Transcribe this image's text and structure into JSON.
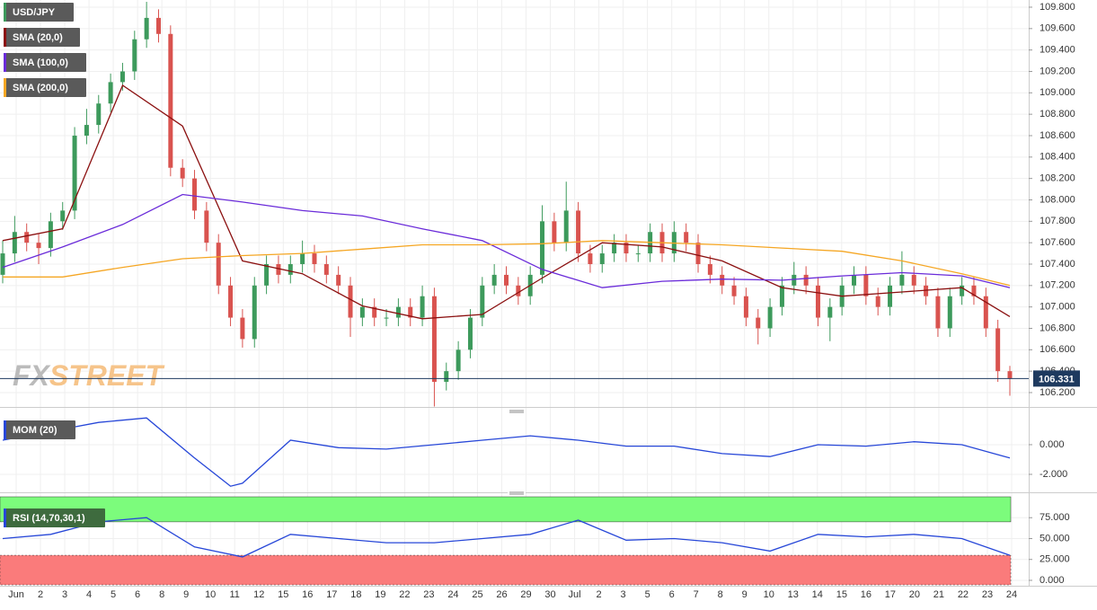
{
  "chart_data": [
    {
      "type": "candlestick",
      "title": "USD/JPY",
      "up_color": "#3d9a5c",
      "down_color": "#d9534f",
      "categories": [
        "Jun",
        "2",
        "3",
        "4",
        "5",
        "6",
        "8",
        "9",
        "10",
        "11",
        "12",
        "15",
        "16",
        "17",
        "18",
        "19",
        "22",
        "23",
        "24",
        "25",
        "26",
        "29",
        "30",
        "Jul",
        "2",
        "3",
        "5",
        "6",
        "7",
        "8",
        "9",
        "10",
        "13",
        "14",
        "15",
        "16",
        "17",
        "20",
        "21",
        "22",
        "23",
        "24"
      ],
      "ylim": [
        106.074,
        109.867
      ],
      "yticks": [
        {
          "value": 106.2,
          "label": "106.200"
        },
        {
          "value": 106.4,
          "label": "106.400"
        },
        {
          "value": 106.6,
          "label": "106.600"
        },
        {
          "value": 106.8,
          "label": "106.800"
        },
        {
          "value": 107.0,
          "label": "107.000"
        },
        {
          "value": 107.2,
          "label": "107.200"
        },
        {
          "value": 107.4,
          "label": "107.400"
        },
        {
          "value": 107.6,
          "label": "107.600"
        },
        {
          "value": 107.8,
          "label": "107.800"
        },
        {
          "value": 108.0,
          "label": "108.000"
        },
        {
          "value": 108.2,
          "label": "108.200"
        },
        {
          "value": 108.4,
          "label": "108.400"
        },
        {
          "value": 108.6,
          "label": "108.600"
        },
        {
          "value": 108.8,
          "label": "108.800"
        },
        {
          "value": 109.0,
          "label": "109.000"
        },
        {
          "value": 109.2,
          "label": "109.200"
        },
        {
          "value": 109.4,
          "label": "109.400"
        },
        {
          "value": 109.6,
          "label": "109.600"
        },
        {
          "value": 109.8,
          "label": "109.800"
        }
      ],
      "last_price": 106.331,
      "candles": [
        [
          107.3,
          107.62,
          107.22,
          107.5
        ],
        [
          107.5,
          107.85,
          107.42,
          107.7
        ],
        [
          107.7,
          107.78,
          107.52,
          107.6
        ],
        [
          107.6,
          107.68,
          107.4,
          107.55
        ],
        [
          107.55,
          107.88,
          107.47,
          107.8
        ],
        [
          107.8,
          107.98,
          107.72,
          107.9
        ],
        [
          107.9,
          108.68,
          107.82,
          108.6
        ],
        [
          108.6,
          108.85,
          108.52,
          108.7
        ],
        [
          108.7,
          108.98,
          108.62,
          108.9
        ],
        [
          108.9,
          109.18,
          108.82,
          109.1
        ],
        [
          109.1,
          109.28,
          109.02,
          109.2
        ],
        [
          109.2,
          109.58,
          109.12,
          109.5
        ],
        [
          109.5,
          109.85,
          109.42,
          109.7
        ],
        [
          109.7,
          109.78,
          109.47,
          109.55
        ],
        [
          109.55,
          109.63,
          108.22,
          108.3
        ],
        [
          108.3,
          108.38,
          108.12,
          108.2
        ],
        [
          108.2,
          108.28,
          107.82,
          107.9
        ],
        [
          107.9,
          107.98,
          107.52,
          107.6
        ],
        [
          107.6,
          107.68,
          107.12,
          107.2
        ],
        [
          107.2,
          107.28,
          106.82,
          106.9
        ],
        [
          106.9,
          106.98,
          106.62,
          106.7
        ],
        [
          106.7,
          107.28,
          106.62,
          107.2
        ],
        [
          107.2,
          107.48,
          107.12,
          107.4
        ],
        [
          107.4,
          107.48,
          107.22,
          107.3
        ],
        [
          107.3,
          107.48,
          107.22,
          107.4
        ],
        [
          107.4,
          107.62,
          107.32,
          107.5
        ],
        [
          107.5,
          107.58,
          107.32,
          107.4
        ],
        [
          107.4,
          107.48,
          107.22,
          107.3
        ],
        [
          107.3,
          107.38,
          107.12,
          107.2
        ],
        [
          107.2,
          107.28,
          106.72,
          106.9
        ],
        [
          106.9,
          107.08,
          106.82,
          107.0
        ],
        [
          107.0,
          107.08,
          106.82,
          106.9
        ],
        [
          106.9,
          106.98,
          106.82,
          106.9
        ],
        [
          106.9,
          107.08,
          106.82,
          107.0
        ],
        [
          107.0,
          107.08,
          106.82,
          106.9
        ],
        [
          106.9,
          107.2,
          106.82,
          107.1
        ],
        [
          107.1,
          107.18,
          106.07,
          106.3
        ],
        [
          106.3,
          106.48,
          106.22,
          106.4
        ],
        [
          106.4,
          106.68,
          106.32,
          106.6
        ],
        [
          106.6,
          106.98,
          106.52,
          106.9
        ],
        [
          106.9,
          107.28,
          106.82,
          107.2
        ],
        [
          107.2,
          107.4,
          107.12,
          107.3
        ],
        [
          107.3,
          107.38,
          107.12,
          107.2
        ],
        [
          107.2,
          107.28,
          107.02,
          107.1
        ],
        [
          107.1,
          107.38,
          107.02,
          107.3
        ],
        [
          107.3,
          107.95,
          107.22,
          107.8
        ],
        [
          107.8,
          107.88,
          107.52,
          107.6
        ],
        [
          107.6,
          108.17,
          107.52,
          107.9
        ],
        [
          107.9,
          107.98,
          107.42,
          107.5
        ],
        [
          107.5,
          107.58,
          107.32,
          107.4
        ],
        [
          107.4,
          107.58,
          107.32,
          107.5
        ],
        [
          107.5,
          107.68,
          107.42,
          107.6
        ],
        [
          107.6,
          107.68,
          107.42,
          107.5
        ],
        [
          107.5,
          107.58,
          107.42,
          107.5
        ],
        [
          107.5,
          107.78,
          107.42,
          107.7
        ],
        [
          107.7,
          107.78,
          107.42,
          107.5
        ],
        [
          107.5,
          107.8,
          107.42,
          107.7
        ],
        [
          107.7,
          107.78,
          107.52,
          107.6
        ],
        [
          107.6,
          107.68,
          107.32,
          107.4
        ],
        [
          107.4,
          107.48,
          107.22,
          107.3
        ],
        [
          107.3,
          107.38,
          107.12,
          107.2
        ],
        [
          107.2,
          107.28,
          107.02,
          107.1
        ],
        [
          107.1,
          107.18,
          106.82,
          106.9
        ],
        [
          106.9,
          106.98,
          106.65,
          106.8
        ],
        [
          106.8,
          107.08,
          106.72,
          107.0
        ],
        [
          107.0,
          107.28,
          106.92,
          107.2
        ],
        [
          107.2,
          107.42,
          107.12,
          107.3
        ],
        [
          107.3,
          107.38,
          107.12,
          107.2
        ],
        [
          107.2,
          107.28,
          106.82,
          106.9
        ],
        [
          106.9,
          107.08,
          106.68,
          107.0
        ],
        [
          107.0,
          107.28,
          106.92,
          107.2
        ],
        [
          107.2,
          107.38,
          107.12,
          107.3
        ],
        [
          107.3,
          107.38,
          107.02,
          107.1
        ],
        [
          107.1,
          107.18,
          106.92,
          107.0
        ],
        [
          107.0,
          107.28,
          106.92,
          107.2
        ],
        [
          107.2,
          107.52,
          107.12,
          107.3
        ],
        [
          107.3,
          107.38,
          107.12,
          107.2
        ],
        [
          107.2,
          107.28,
          107.02,
          107.1
        ],
        [
          107.1,
          107.18,
          106.72,
          106.8
        ],
        [
          106.8,
          107.18,
          106.72,
          107.1
        ],
        [
          107.1,
          107.28,
          107.02,
          107.2
        ],
        [
          107.2,
          107.28,
          107.02,
          107.1
        ],
        [
          107.1,
          107.18,
          106.72,
          106.8
        ],
        [
          106.8,
          106.88,
          106.3,
          106.4
        ],
        [
          106.4,
          106.45,
          106.17,
          106.33
        ]
      ],
      "series": [
        {
          "name": "SMA (20,0)",
          "color": "#8b1010",
          "x": [
            0,
            5,
            10,
            15,
            20,
            25,
            30,
            35,
            40,
            45,
            50,
            55,
            60,
            65,
            70,
            75,
            80,
            84
          ],
          "values": [
            107.62,
            107.73,
            109.07,
            108.69,
            107.43,
            107.31,
            107.01,
            106.89,
            106.93,
            107.27,
            107.6,
            107.56,
            107.43,
            107.18,
            107.1,
            107.14,
            107.18,
            106.91
          ]
        },
        {
          "name": "SMA (100,0)",
          "color": "#6a2bd9",
          "x": [
            0,
            5,
            10,
            15,
            20,
            25,
            30,
            35,
            40,
            45,
            50,
            55,
            60,
            65,
            70,
            75,
            80,
            84
          ],
          "values": [
            107.37,
            107.56,
            107.77,
            108.05,
            107.98,
            107.9,
            107.85,
            107.73,
            107.62,
            107.35,
            107.18,
            107.24,
            107.26,
            107.25,
            107.29,
            107.32,
            107.29,
            107.18
          ]
        },
        {
          "name": "SMA (200,0)",
          "color": "#f5a623",
          "x": [
            0,
            5,
            10,
            15,
            20,
            25,
            30,
            35,
            40,
            45,
            50,
            55,
            60,
            65,
            70,
            75,
            80,
            84
          ],
          "values": [
            107.28,
            107.28,
            107.37,
            107.45,
            107.48,
            107.5,
            107.54,
            107.58,
            107.58,
            107.59,
            107.62,
            107.6,
            107.58,
            107.55,
            107.52,
            107.43,
            107.31,
            107.2
          ]
        }
      ]
    },
    {
      "type": "line",
      "title": "MOM (20)",
      "ylim": [
        -3.03,
        2.42
      ],
      "yticks": [
        {
          "value": -2,
          "label": "-2.000"
        },
        {
          "value": 0,
          "label": "0.000"
        }
      ],
      "series": [
        {
          "color": "#2747d8",
          "x": [
            0,
            4,
            8,
            12,
            16,
            19,
            20,
            24,
            28,
            32,
            36,
            40,
            44,
            48,
            52,
            56,
            60,
            64,
            68,
            72,
            76,
            80,
            84
          ],
          "values": [
            0.3,
            0.9,
            1.5,
            1.8,
            -0.9,
            -2.8,
            -2.6,
            0.3,
            -0.2,
            -0.3,
            0.0,
            0.3,
            0.6,
            0.3,
            -0.1,
            -0.1,
            -0.6,
            -0.8,
            0.0,
            -0.1,
            0.2,
            0.0,
            -0.9
          ]
        }
      ]
    },
    {
      "type": "line",
      "title": "RSI (14,70,30,1)",
      "ylim": [
        -5.4,
        100
      ],
      "overbought": 70,
      "oversold": 30,
      "yticks": [
        {
          "value": 0,
          "label": "0.000"
        },
        {
          "value": 25,
          "label": "25.000"
        },
        {
          "value": 50,
          "label": "50.000"
        },
        {
          "value": 75,
          "label": "75.000"
        }
      ],
      "series": [
        {
          "color": "#2747d8",
          "x": [
            0,
            4,
            8,
            12,
            16,
            20,
            24,
            28,
            32,
            36,
            40,
            44,
            48,
            52,
            56,
            60,
            64,
            68,
            72,
            76,
            80,
            84
          ],
          "values": [
            50,
            55,
            70,
            75,
            40,
            28,
            55,
            50,
            45,
            45,
            50,
            55,
            72,
            48,
            50,
            45,
            35,
            55,
            52,
            55,
            50,
            30
          ]
        }
      ]
    }
  ],
  "watermark": [
    "FX",
    "STREET"
  ]
}
